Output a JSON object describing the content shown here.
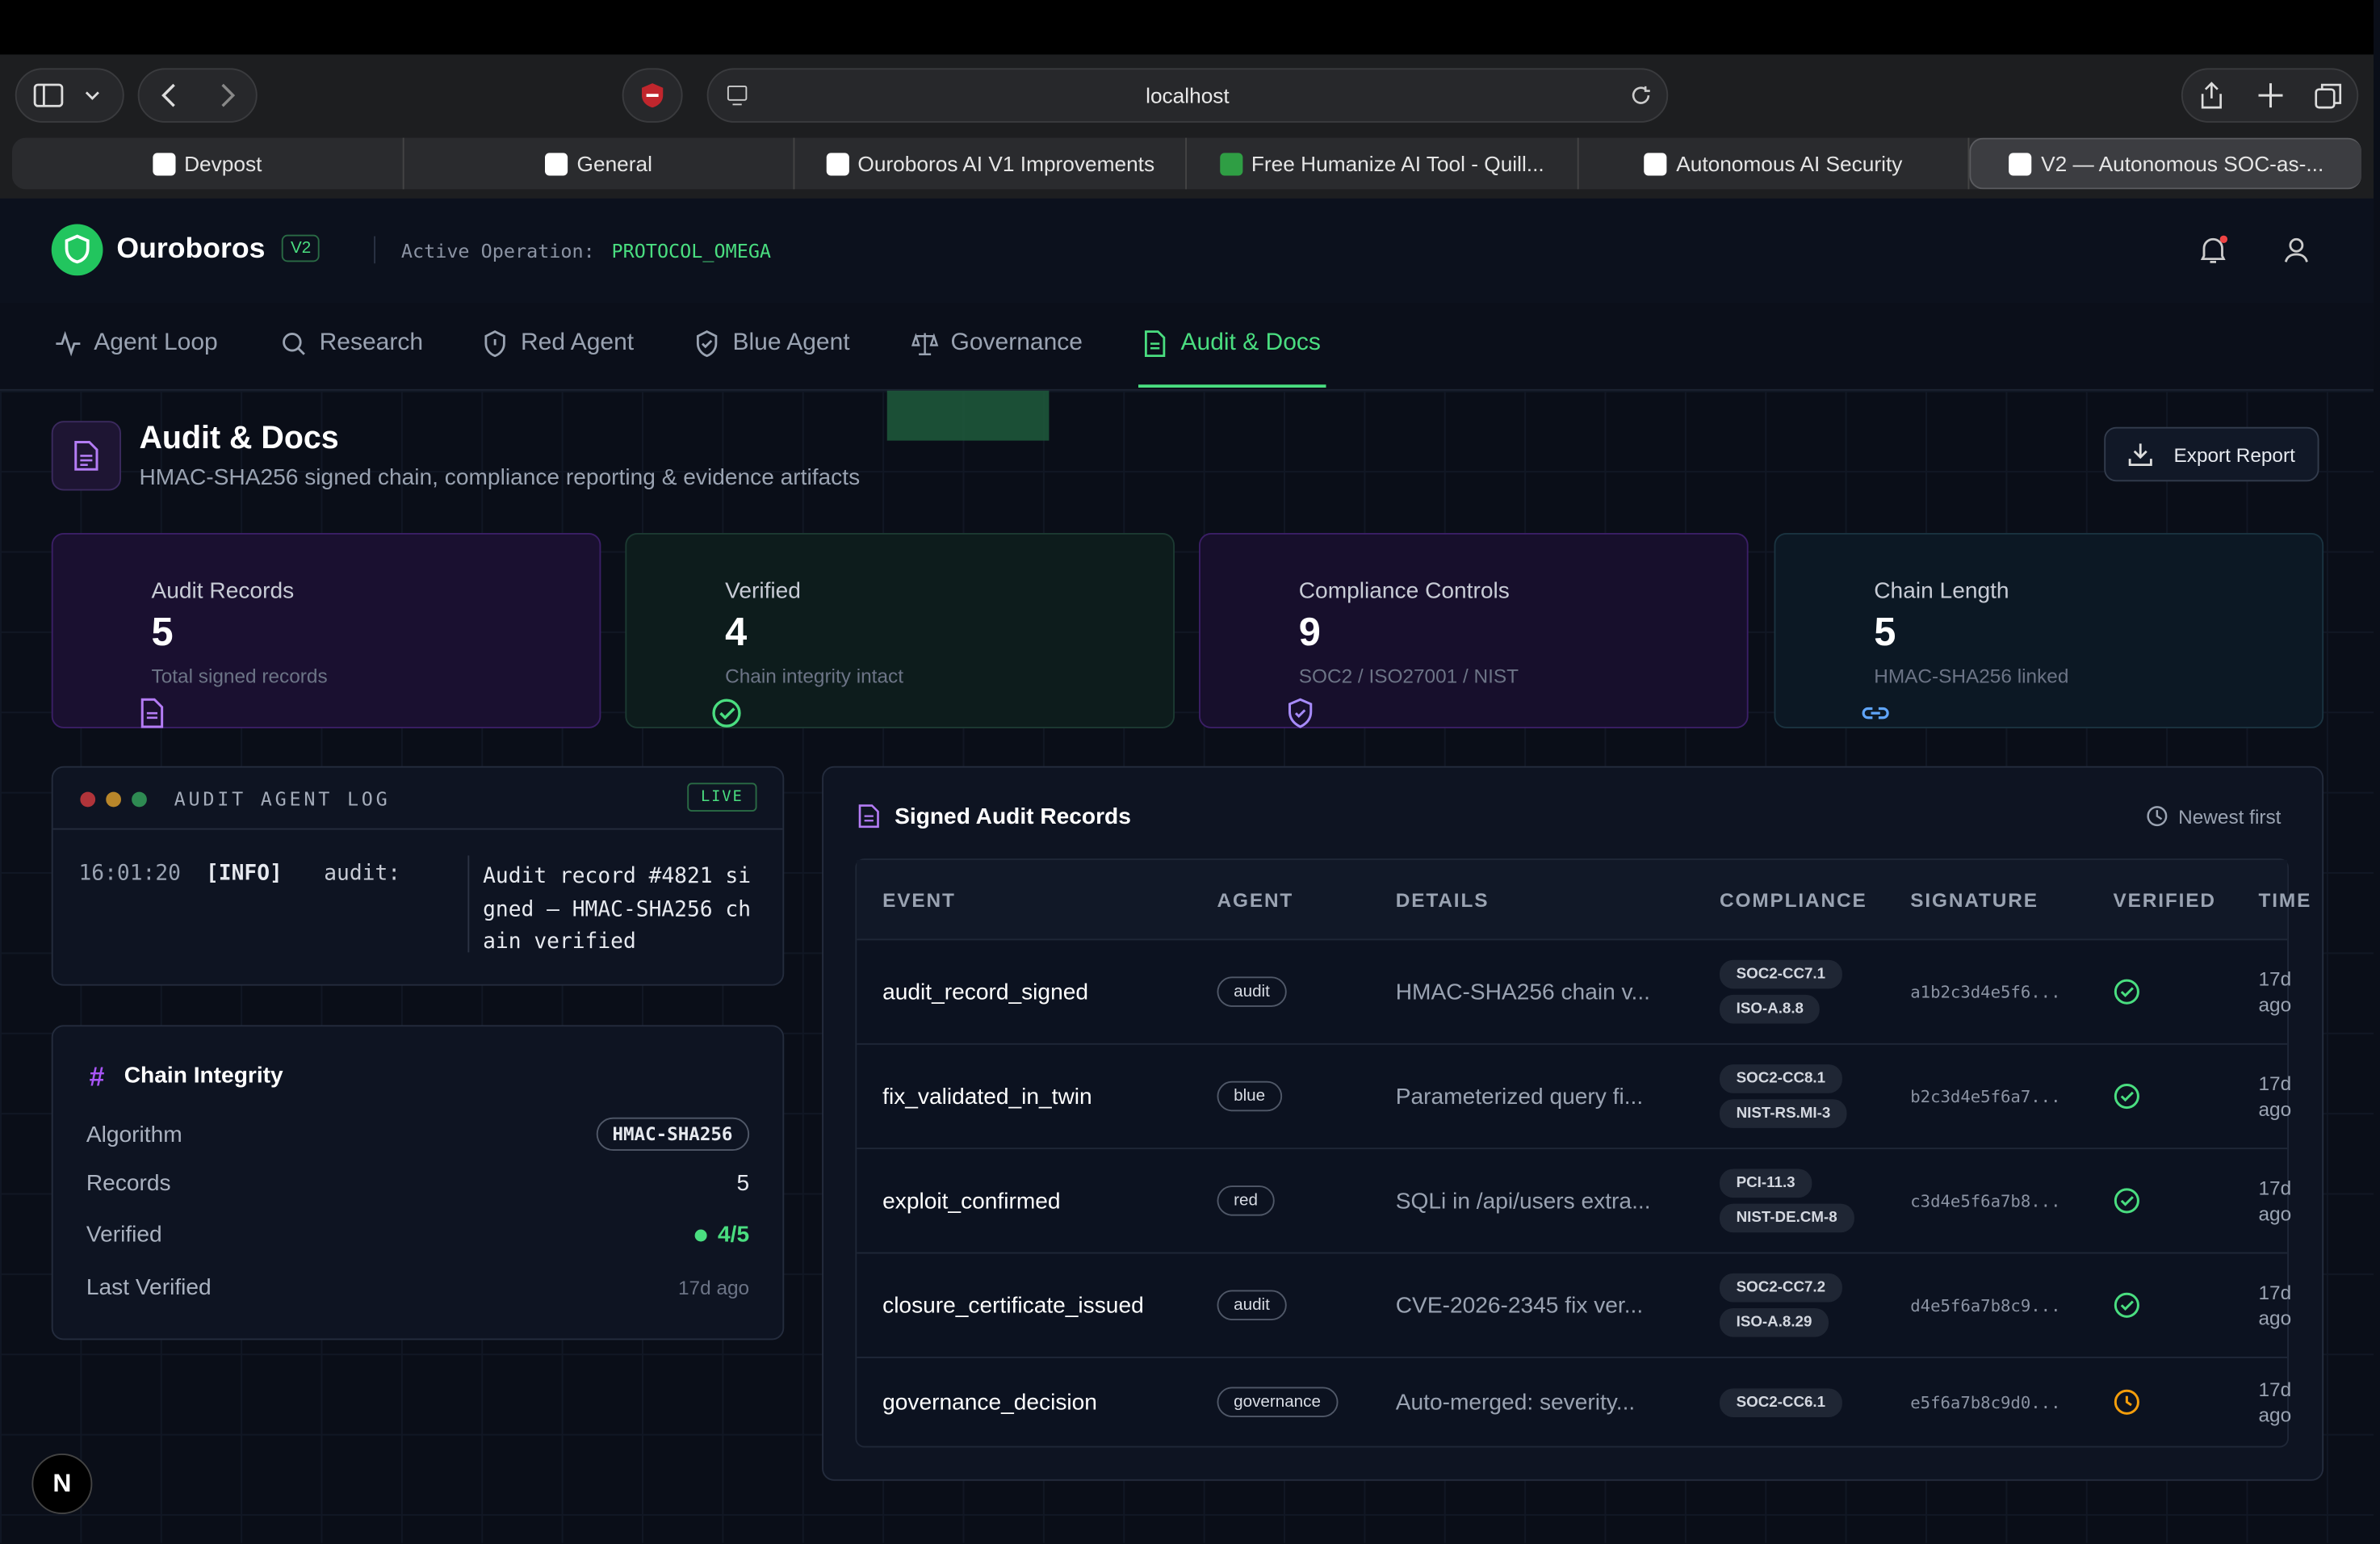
{
  "browser": {
    "url": "localhost",
    "tabs": [
      "Devpost",
      "General",
      "Ouroboros AI V1 Improvements",
      "Free Humanize AI Tool - Quill...",
      "Autonomous AI Security",
      "V2 — Autonomous SOC-as-..."
    ]
  },
  "header": {
    "brand": "Ouroboros",
    "version": "V2",
    "operation_label": "Active Operation:",
    "operation": "PROTOCOL_OMEGA"
  },
  "nav": [
    "Agent Loop",
    "Research",
    "Red Agent",
    "Blue Agent",
    "Governance",
    "Audit & Docs"
  ],
  "page": {
    "title": "Audit & Docs",
    "subtitle": "HMAC-SHA256 signed chain, compliance reporting & evidence artifacts",
    "export": "Export Report"
  },
  "stats": [
    {
      "label": "Audit Records",
      "value": 5,
      "note": "Total signed records"
    },
    {
      "label": "Verified",
      "value": 4,
      "note": "Chain integrity intact"
    },
    {
      "label": "Compliance Controls",
      "value": 9,
      "note": "SOC2 / ISO27001 / NIST"
    },
    {
      "label": "Chain Length",
      "value": 5,
      "note": "HMAC-SHA256 linked"
    }
  ],
  "log": {
    "title": "AUDIT AGENT LOG",
    "status": "LIVE",
    "entries": [
      {
        "time": "16:01:20",
        "level": "[INFO]",
        "source": "audit:",
        "message": "Audit record #4821 signed — HMAC-SHA256 chain verified"
      }
    ]
  },
  "chain": {
    "title": "Chain Integrity",
    "rows": [
      {
        "label": "Algorithm",
        "value": "HMAC-SHA256"
      },
      {
        "label": "Records",
        "value": "5"
      },
      {
        "label": "Verified",
        "value": "4/5"
      },
      {
        "label": "Last Verified",
        "value": "17d ago"
      }
    ]
  },
  "table": {
    "title": "Signed Audit Records",
    "sort": "Newest first",
    "columns": [
      "EVENT",
      "AGENT",
      "DETAILS",
      "COMPLIANCE",
      "SIGNATURE",
      "VERIFIED",
      "TIME"
    ],
    "rows": [
      {
        "event": "audit_record_signed",
        "agent": "audit",
        "details": "HMAC-SHA256 chain v...",
        "compliance": [
          "SOC2-CC7.1",
          "ISO-A.8.8"
        ],
        "signature": "a1b2c3d4e5f6...",
        "verified": true,
        "time": "17d ago"
      },
      {
        "event": "fix_validated_in_twin",
        "agent": "blue",
        "details": "Parameterized query fi...",
        "compliance": [
          "SOC2-CC8.1",
          "NIST-RS.MI-3"
        ],
        "signature": "b2c3d4e5f6a7...",
        "verified": true,
        "time": "17d ago"
      },
      {
        "event": "exploit_confirmed",
        "agent": "red",
        "details": "SQLi in /api/users extra...",
        "compliance": [
          "PCI-11.3",
          "NIST-DE.CM-8"
        ],
        "signature": "c3d4e5f6a7b8...",
        "verified": true,
        "time": "17d ago"
      },
      {
        "event": "closure_certificate_issued",
        "agent": "audit",
        "details": "CVE-2026-2345 fix ver...",
        "compliance": [
          "SOC2-CC7.2",
          "ISO-A.8.29"
        ],
        "signature": "d4e5f6a7b8c9...",
        "verified": true,
        "time": "17d ago"
      },
      {
        "event": "governance_decision",
        "agent": "governance",
        "details": "Auto-merged: severity...",
        "compliance": [
          "SOC2-CC6.1"
        ],
        "signature": "e5f6a7b8c9d0...",
        "verified": false,
        "time": "17d ago"
      }
    ]
  }
}
